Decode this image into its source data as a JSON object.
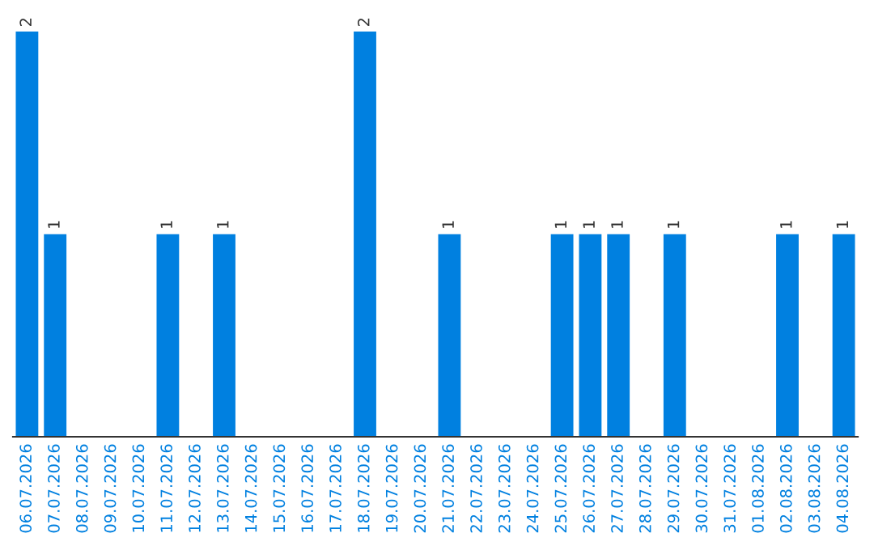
{
  "chart_data": {
    "type": "bar",
    "categories": [
      "06.07.2026",
      "07.07.2026",
      "08.07.2026",
      "09.07.2026",
      "10.07.2026",
      "11.07.2026",
      "12.07.2026",
      "13.07.2026",
      "14.07.2026",
      "15.07.2026",
      "16.07.2026",
      "17.07.2026",
      "18.07.2026",
      "19.07.2026",
      "20.07.2026",
      "21.07.2026",
      "22.07.2026",
      "23.07.2026",
      "24.07.2026",
      "25.07.2026",
      "26.07.2026",
      "27.07.2026",
      "28.07.2026",
      "29.07.2026",
      "30.07.2026",
      "31.07.2026",
      "01.08.2026",
      "02.08.2026",
      "03.08.2026",
      "04.08.2026"
    ],
    "values": [
      2,
      1,
      0,
      0,
      0,
      1,
      0,
      1,
      0,
      0,
      0,
      0,
      2,
      0,
      0,
      1,
      0,
      0,
      0,
      1,
      1,
      1,
      0,
      1,
      0,
      0,
      0,
      1,
      0,
      1
    ],
    "value_labels": [
      "2",
      "1",
      null,
      null,
      null,
      "1",
      null,
      "1",
      null,
      null,
      null,
      null,
      "2",
      null,
      null,
      "1",
      null,
      null,
      null,
      "1",
      "1",
      "1",
      null,
      "1",
      null,
      null,
      null,
      "1",
      null,
      "1"
    ],
    "color": "#0080e0",
    "tick_labels": "x",
    "grid": false,
    "legend": false
  }
}
